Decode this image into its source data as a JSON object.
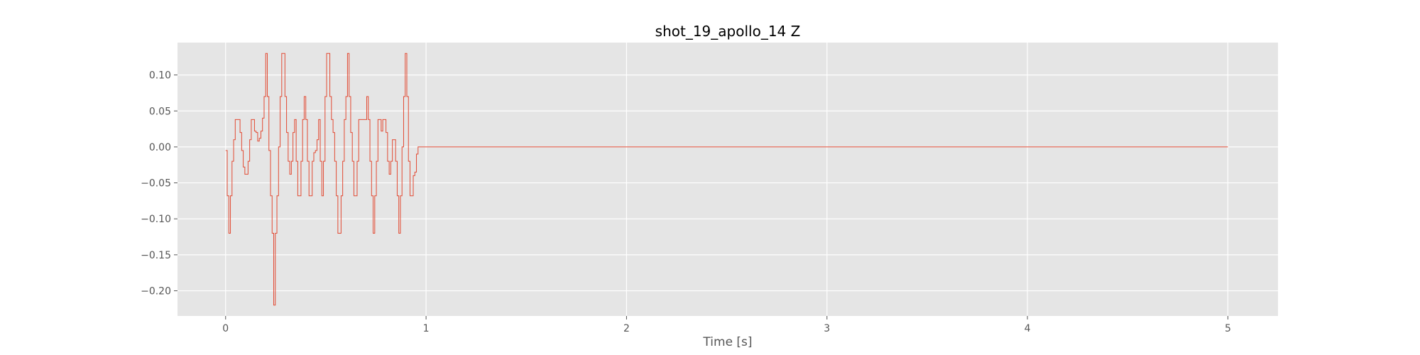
{
  "chart_data": {
    "type": "line",
    "title": "shot_19_apollo_14 Z",
    "xlabel": "Time [s]",
    "ylabel": "",
    "xlim": [
      -0.24,
      5.25
    ],
    "ylim": [
      -0.235,
      0.145
    ],
    "style": "ggplot",
    "grid": true,
    "legend": "none",
    "colors": {
      "background": "#E5E5E5",
      "grid": "#FFFFFF",
      "line": "#E24A33",
      "tick_text": "#555555",
      "title_text": "#000000"
    },
    "x_ticks": [
      {
        "value": 0,
        "label": "0"
      },
      {
        "value": 1,
        "label": "1"
      },
      {
        "value": 2,
        "label": "2"
      },
      {
        "value": 3,
        "label": "3"
      },
      {
        "value": 4,
        "label": "4"
      },
      {
        "value": 5,
        "label": "5"
      }
    ],
    "y_ticks": [
      {
        "value": 0.1,
        "label": "0.10"
      },
      {
        "value": 0.05,
        "label": "0.05"
      },
      {
        "value": 0.0,
        "label": "0.00"
      },
      {
        "value": -0.05,
        "label": "−0.05"
      },
      {
        "value": -0.1,
        "label": "−0.10"
      },
      {
        "value": -0.15,
        "label": "−0.15"
      },
      {
        "value": -0.2,
        "label": "−0.20"
      }
    ],
    "series": [
      {
        "x": [
          0.0,
          0.008,
          0.016,
          0.024,
          0.032,
          0.04,
          0.048,
          0.056,
          0.064,
          0.072,
          0.08,
          0.088,
          0.096,
          0.104,
          0.112,
          0.12,
          0.128,
          0.136,
          0.144,
          0.152,
          0.16,
          0.168,
          0.176,
          0.184,
          0.192,
          0.2,
          0.208,
          0.216,
          0.224,
          0.232,
          0.24,
          0.248,
          0.256,
          0.264,
          0.272,
          0.28,
          0.288,
          0.296,
          0.304,
          0.312,
          0.32,
          0.328,
          0.336,
          0.344,
          0.352,
          0.36,
          0.368,
          0.376,
          0.384,
          0.392,
          0.4,
          0.408,
          0.416,
          0.424,
          0.432,
          0.44,
          0.448,
          0.456,
          0.464,
          0.472,
          0.48,
          0.488,
          0.496,
          0.504,
          0.512,
          0.52,
          0.528,
          0.536,
          0.544,
          0.552,
          0.56,
          0.568,
          0.576,
          0.584,
          0.592,
          0.6,
          0.608,
          0.616,
          0.624,
          0.632,
          0.64,
          0.648,
          0.656,
          0.664,
          0.672,
          0.68,
          0.688,
          0.696,
          0.704,
          0.712,
          0.72,
          0.728,
          0.736,
          0.744,
          0.752,
          0.76,
          0.768,
          0.776,
          0.784,
          0.792,
          0.8,
          0.808,
          0.816,
          0.824,
          0.832,
          0.84,
          0.848,
          0.856,
          0.864,
          0.872,
          0.88,
          0.888,
          0.896,
          0.904,
          0.912,
          0.92,
          0.928,
          0.936,
          0.944,
          0.952,
          0.96,
          0.968,
          0.976,
          0.984,
          0.992,
          1.0,
          1.5,
          2.0,
          2.5,
          3.0,
          3.5,
          4.0,
          4.5,
          5.0
        ],
        "y": [
          -0.005,
          -0.068,
          -0.12,
          -0.068,
          -0.02,
          0.01,
          0.038,
          0.038,
          0.038,
          0.02,
          -0.005,
          -0.028,
          -0.038,
          -0.038,
          -0.02,
          0.01,
          0.038,
          0.038,
          0.022,
          0.02,
          0.008,
          0.012,
          0.022,
          0.04,
          0.07,
          0.13,
          0.07,
          -0.005,
          -0.068,
          -0.12,
          -0.22,
          -0.12,
          -0.068,
          0.0,
          0.07,
          0.13,
          0.13,
          0.07,
          0.02,
          -0.02,
          -0.038,
          -0.02,
          0.02,
          0.038,
          -0.02,
          -0.068,
          -0.068,
          -0.02,
          0.038,
          0.07,
          0.038,
          -0.02,
          -0.068,
          -0.068,
          -0.02,
          -0.008,
          -0.005,
          0.01,
          0.038,
          -0.02,
          -0.068,
          -0.02,
          0.07,
          0.13,
          0.13,
          0.07,
          0.038,
          0.02,
          -0.02,
          -0.068,
          -0.12,
          -0.12,
          -0.068,
          -0.02,
          0.038,
          0.07,
          0.13,
          0.07,
          0.02,
          -0.02,
          -0.068,
          -0.068,
          -0.02,
          0.038,
          0.038,
          0.038,
          0.038,
          0.038,
          0.07,
          0.038,
          -0.02,
          -0.068,
          -0.12,
          -0.068,
          -0.02,
          0.038,
          0.038,
          0.022,
          0.038,
          0.038,
          0.02,
          -0.02,
          -0.038,
          -0.02,
          0.01,
          0.01,
          -0.02,
          -0.068,
          -0.12,
          -0.068,
          0.0,
          0.07,
          0.13,
          0.07,
          -0.02,
          -0.068,
          -0.068,
          -0.04,
          -0.035,
          -0.01,
          0.0,
          0.0,
          0.0,
          0.0,
          0.0,
          0.0,
          0.0,
          0.0,
          0.0,
          0.0,
          0.0,
          0.0,
          0.0,
          0.0
        ]
      }
    ]
  }
}
